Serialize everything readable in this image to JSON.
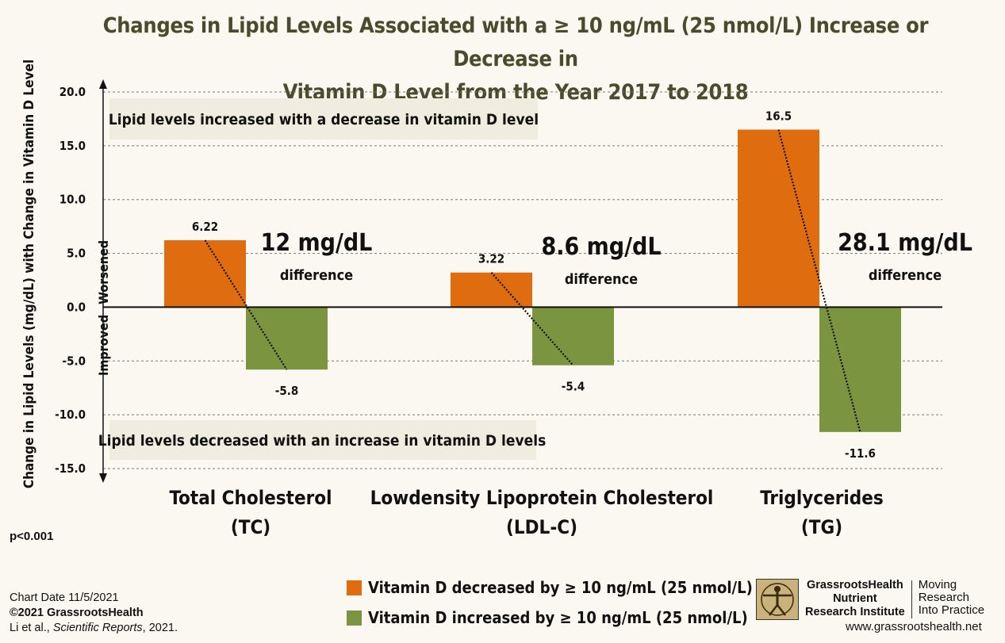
{
  "title": {
    "line1": "Changes in Lipid Levels Associated with a ≥ 10 ng/mL (25 nmol/L) Increase or Decrease in",
    "line2": "Vitamin D Level from the Year 2017 to 2018"
  },
  "colors": {
    "decreased": "#e06c10",
    "increased": "#7a9440"
  },
  "chart_data": {
    "type": "bar",
    "title": "Changes in Lipid Levels Associated with a ≥ 10 ng/mL (25 nmol/L) Increase or Decrease in Vitamin D Level from the Year 2017 to 2018",
    "ylabel": "Change in Lipid Levels (mg/dL) with Change in Vitamin D Level",
    "ylim": [
      -15,
      20
    ],
    "yticks": [
      "20.0",
      "15.0",
      "10.0",
      "5.0",
      "0.0",
      "-5.0",
      "-10.0",
      "-15.0"
    ],
    "grid": true,
    "categories": [
      {
        "line1": "Total Cholesterol",
        "line2": "(TC)"
      },
      {
        "line1": "Lowdensity Lipoprotein Cholesterol",
        "line2": "(LDL-C)"
      },
      {
        "line1": "Triglycerides",
        "line2": "(TG)"
      }
    ],
    "series": [
      {
        "name": "Vitamin D decreased by ≥ 10 ng/mL (25 nmol/L)",
        "values": [
          6.22,
          3.22,
          16.5
        ],
        "labels": [
          "6.22",
          "3.22",
          "16.5"
        ]
      },
      {
        "name": "Vitamin D increased by ≥ 10 ng/mL (25 nmol/L)",
        "values": [
          -5.8,
          -5.4,
          -11.6
        ],
        "labels": [
          "-5.8",
          "-5.4",
          "-11.6"
        ]
      }
    ],
    "differences": [
      "12 mg/dL",
      "8.6 mg/dL",
      "28.1 mg/dL"
    ],
    "difference_word": "difference",
    "annotations": {
      "top": "Lipid levels increased with a decrease in vitamin D level",
      "bottom": "Lipid levels decreased with an increase in vitamin D levels",
      "worsened": "Worsened",
      "improved": "Improved"
    }
  },
  "pvalue": "p<0.001",
  "footer": {
    "chart_date": "Chart Date 11/5/2021",
    "copyright": "©2021 GrassrootsHealth",
    "citation_prefix": "Li et al., ",
    "citation_journal": "Scientific Reports",
    "citation_suffix": ", 2021."
  },
  "logo": {
    "name1": "GrassrootsHealth",
    "name2": "Nutrient",
    "name3": "Research Institute",
    "tag1": "Moving",
    "tag2": "Research",
    "tag3": "Into Practice",
    "icon": "vitruvian-man-icon"
  },
  "url": "www.grassrootshealth.net"
}
